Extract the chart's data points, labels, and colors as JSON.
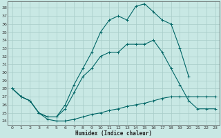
{
  "xlabel": "Humidex (Indice chaleur)",
  "ylabel": "",
  "bg_color": "#c8e8e4",
  "grid_color": "#a8ccc8",
  "line_color": "#006666",
  "xlim": [
    -0.5,
    23.5
  ],
  "ylim": [
    23.5,
    38.8
  ],
  "xticks": [
    0,
    1,
    2,
    3,
    4,
    5,
    6,
    7,
    8,
    9,
    10,
    11,
    12,
    13,
    14,
    15,
    16,
    17,
    18,
    19,
    20,
    21,
    22,
    23
  ],
  "yticks": [
    24,
    25,
    26,
    27,
    28,
    29,
    30,
    31,
    32,
    33,
    34,
    35,
    36,
    37,
    38
  ],
  "line1_x": [
    0,
    1,
    2,
    3,
    4,
    5,
    6,
    7,
    8,
    9,
    10,
    11,
    12,
    13,
    14,
    15,
    16,
    17,
    18,
    19,
    20,
    21,
    22,
    23
  ],
  "line1_y": [
    28,
    27,
    26.5,
    25,
    24.2,
    24.0,
    24.0,
    24.2,
    24.5,
    24.8,
    25.0,
    25.3,
    25.5,
    25.8,
    26.0,
    26.2,
    26.5,
    26.8,
    27.0,
    27.0,
    27.0,
    27.0,
    27.0,
    27.0
  ],
  "line2_x": [
    0,
    1,
    2,
    3,
    4,
    5,
    6,
    7,
    8,
    9,
    10,
    11,
    12,
    13,
    14,
    15,
    16,
    17,
    18,
    19,
    20,
    21,
    22,
    23
  ],
  "line2_y": [
    28,
    27,
    26.5,
    25,
    24.5,
    24.5,
    25.5,
    27.5,
    29.5,
    30.5,
    32.0,
    32.5,
    32.5,
    33.5,
    33.5,
    33.5,
    34.0,
    32.5,
    30.5,
    28.5,
    26.5,
    25.5,
    25.5,
    25.5
  ],
  "line3_x": [
    0,
    1,
    2,
    3,
    4,
    5,
    6,
    7,
    8,
    9,
    10,
    11,
    12,
    13,
    14,
    15,
    16,
    17,
    18,
    19,
    20
  ],
  "line3_y": [
    28,
    27,
    26.5,
    25,
    24.5,
    24.5,
    26.0,
    28.5,
    30.5,
    32.5,
    35.0,
    36.5,
    37.0,
    36.5,
    38.2,
    38.5,
    37.5,
    36.5,
    36.0,
    33.0,
    29.5
  ]
}
